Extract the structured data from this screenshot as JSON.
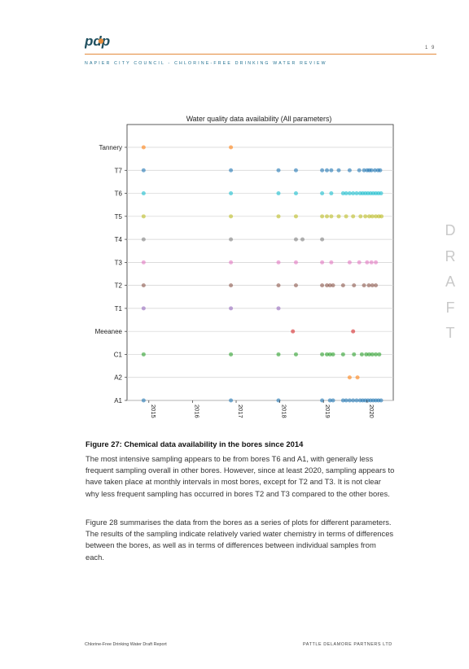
{
  "header": {
    "logo_text": "pdp",
    "page_number": "1 9",
    "running_head": "NAPIER CITY COUNCIL - CHLORINE-FREE DRINKING WATER REVIEW"
  },
  "draft_watermark": [
    "D",
    "R",
    "A",
    "F",
    "T"
  ],
  "chart_data": {
    "type": "scatter",
    "title": "Water quality data availability (All parameters)",
    "categories": [
      "Tannery",
      "T7",
      "T6",
      "T5",
      "T4",
      "T3",
      "T2",
      "T1",
      "Meeanee",
      "C1",
      "A2",
      "A1"
    ],
    "x_ticks": [
      "2015",
      "2016",
      "2017",
      "2018",
      "2019",
      "2020"
    ],
    "xlim": [
      2014.5,
      2020.6
    ],
    "grid": true,
    "series": [
      {
        "category": "Tannery",
        "color": "#ff7f0e",
        "x": [
          2014.88,
          2016.88
        ]
      },
      {
        "category": "T7",
        "color": "#1f77b4",
        "x": [
          2014.88,
          2016.88,
          2017.97,
          2018.37,
          2018.97,
          2019.08,
          2019.18,
          2019.35,
          2019.6,
          2019.82,
          2019.93,
          2020.0,
          2020.05,
          2020.1,
          2020.18,
          2020.25,
          2020.3
        ]
      },
      {
        "category": "T6",
        "color": "#17becf",
        "x": [
          2014.88,
          2016.88,
          2017.97,
          2018.37,
          2018.97,
          2019.18,
          2019.45,
          2019.52,
          2019.6,
          2019.68,
          2019.76,
          2019.84,
          2019.9,
          2019.96,
          2020.02,
          2020.08,
          2020.14,
          2020.2,
          2020.26,
          2020.32
        ]
      },
      {
        "category": "T5",
        "color": "#bcbd22",
        "x": [
          2014.88,
          2016.88,
          2017.97,
          2018.37,
          2018.97,
          2019.08,
          2019.18,
          2019.35,
          2019.52,
          2019.68,
          2019.85,
          2019.96,
          2020.05,
          2020.12,
          2020.2,
          2020.27,
          2020.33
        ]
      },
      {
        "category": "T4",
        "color": "#7f7f7f",
        "x": [
          2014.88,
          2016.88,
          2018.37,
          2018.52,
          2018.97
        ]
      },
      {
        "category": "T3",
        "color": "#e377c2",
        "x": [
          2014.88,
          2016.88,
          2017.97,
          2018.37,
          2018.97,
          2019.18,
          2019.6,
          2019.82,
          2020.0,
          2020.1,
          2020.2
        ]
      },
      {
        "category": "T2",
        "color": "#8c564b",
        "x": [
          2014.88,
          2016.88,
          2017.97,
          2018.37,
          2018.97,
          2019.08,
          2019.15,
          2019.22,
          2019.45,
          2019.7,
          2019.93,
          2020.04,
          2020.12,
          2020.2
        ]
      },
      {
        "category": "T1",
        "color": "#9467bd",
        "x": [
          2014.88,
          2016.88,
          2017.97
        ]
      },
      {
        "category": "Meeanee",
        "color": "#d62728",
        "x": [
          2018.3,
          2019.68
        ]
      },
      {
        "category": "C1",
        "color": "#2ca02c",
        "x": [
          2014.88,
          2016.88,
          2017.97,
          2018.37,
          2018.97,
          2019.08,
          2019.15,
          2019.22,
          2019.45,
          2019.7,
          2019.88,
          2019.98,
          2020.05,
          2020.12,
          2020.2,
          2020.28
        ]
      },
      {
        "category": "A2",
        "color": "#ff7f0e",
        "x": [
          2019.6,
          2019.78
        ]
      },
      {
        "category": "A1",
        "color": "#1f77b4",
        "x": [
          2014.88,
          2016.88,
          2017.97,
          2018.97,
          2019.15,
          2019.22,
          2019.45,
          2019.52,
          2019.6,
          2019.68,
          2019.76,
          2019.84,
          2019.9,
          2019.96,
          2020.02,
          2020.08,
          2020.14,
          2020.2,
          2020.26,
          2020.32
        ]
      }
    ]
  },
  "caption": "Figure 27: Chemical data availability in the bores since 2014",
  "paragraphs": [
    "The most intensive sampling appears to be from bores T6 and A1, with generally less frequent sampling overall in other bores. However, since at least 2020, sampling appears to have taken place at monthly intervals in most bores, except for T2 and T3. It is not clear why less frequent sampling has occurred in bores T2 and T3 compared to the other bores.",
    "Figure 28 summarises the data from the bores as a series of plots for different parameters. The results of the sampling indicate relatively varied water chemistry in terms of differences between the bores, as well as in terms of differences between individual samples from each."
  ],
  "footer": {
    "left": "Chlorine-Free Drinking Water Draft Report",
    "right": "PATTLE DELAMORE PARTNERS LTD"
  },
  "colors": {
    "accent_orange": "#e38a3c",
    "brand_teal": "#1f4f5f",
    "running_head_blue": "#1f6f8f"
  }
}
